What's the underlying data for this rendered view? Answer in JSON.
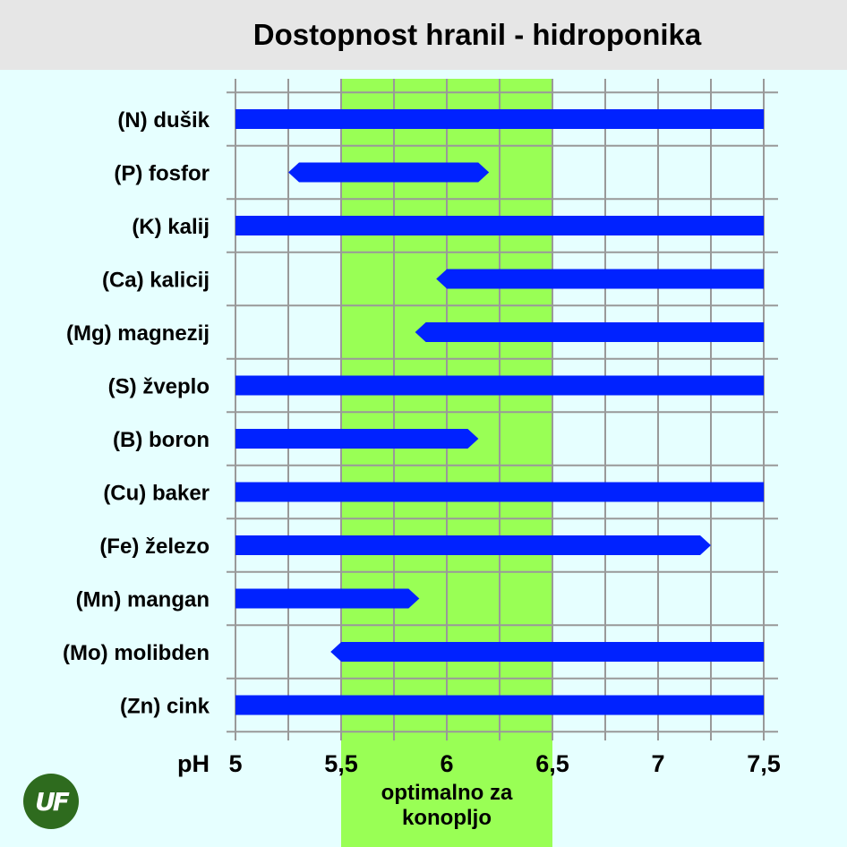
{
  "title": "Dostopnost hranil - hidroponika",
  "optimal_note": "optimalno za konopljo",
  "logo_text": "UF",
  "colors": {
    "background": "#e6ffff",
    "title_bar": "#e6e6e6",
    "bar": "#0022ff",
    "optimal_band": "#99ff55",
    "grid": "#999999",
    "logo": "#2e6b1e"
  },
  "chart_data": {
    "type": "bar",
    "orientation": "horizontal",
    "title": "Dostopnost hranil - hidroponika",
    "xlabel": "pH",
    "xlim": [
      5,
      7.5
    ],
    "xticks": [
      5,
      5.5,
      6,
      6.5,
      7,
      7.5
    ],
    "xtick_labels": [
      "5",
      "5,5",
      "6",
      "6,5",
      "7",
      "7,5"
    ],
    "grid": true,
    "optimal_range": {
      "from": 5.5,
      "to": 6.5,
      "label": "optimalno za konopljo"
    },
    "categories": [
      "(N) dušik",
      "(P) fosfor",
      "(K) kalij",
      "(Ca) kalicij",
      "(Mg) magnezij",
      "(S) žveplo",
      "(B) boron",
      "(Cu) baker",
      "(Fe) železo",
      "(Mn) mangan",
      "(Mo) molibden",
      "(Zn) cink"
    ],
    "ranges": [
      [
        5.0,
        7.5
      ],
      [
        5.25,
        6.2
      ],
      [
        5.0,
        7.5
      ],
      [
        5.95,
        7.5
      ],
      [
        5.85,
        7.5
      ],
      [
        5.0,
        7.5
      ],
      [
        5.0,
        6.15
      ],
      [
        5.0,
        7.5
      ],
      [
        5.0,
        7.25
      ],
      [
        5.0,
        5.87
      ],
      [
        5.45,
        7.5
      ],
      [
        5.0,
        7.5
      ]
    ]
  }
}
